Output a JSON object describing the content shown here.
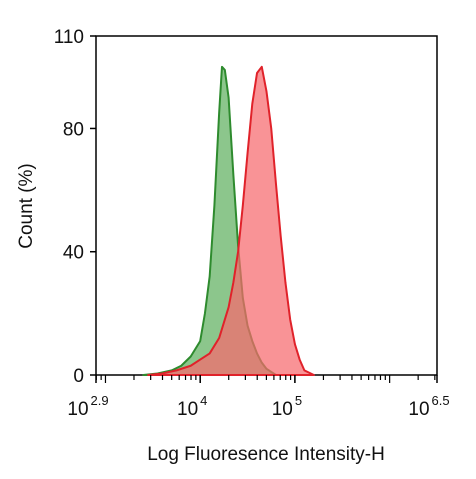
{
  "chart_data": {
    "type": "area",
    "title": "",
    "xlabel": "Log Fluoresence Intensity-H",
    "ylabel": "Count  (%)",
    "x_scale": "log10",
    "xlim": [
      2.9,
      6.5
    ],
    "ylim": [
      0,
      110
    ],
    "x_ticks": [
      {
        "base": "10",
        "exp": "2.9",
        "log": 2.9
      },
      {
        "base": "10",
        "exp": "4",
        "log": 4
      },
      {
        "base": "10",
        "exp": "5",
        "log": 5
      },
      {
        "base": "10",
        "exp": "6.5",
        "log": 6.5
      }
    ],
    "y_ticks": [
      0,
      40,
      80,
      110
    ],
    "grid": false,
    "legend": "none",
    "series": [
      {
        "color": "#2e8b2e",
        "fill": "#5fb05f",
        "points": [
          [
            3.4,
            0
          ],
          [
            3.55,
            0.5
          ],
          [
            3.7,
            1.5
          ],
          [
            3.8,
            3
          ],
          [
            3.9,
            6
          ],
          [
            4.0,
            11
          ],
          [
            4.05,
            20
          ],
          [
            4.1,
            32
          ],
          [
            4.15,
            55
          ],
          [
            4.2,
            85
          ],
          [
            4.23,
            100
          ],
          [
            4.26,
            99
          ],
          [
            4.3,
            90
          ],
          [
            4.35,
            65
          ],
          [
            4.4,
            42
          ],
          [
            4.45,
            25
          ],
          [
            4.5,
            16
          ],
          [
            4.55,
            11
          ],
          [
            4.6,
            7
          ],
          [
            4.65,
            4
          ],
          [
            4.7,
            2
          ],
          [
            4.8,
            0
          ]
        ]
      },
      {
        "color": "#e0222a",
        "fill": "#f66a6e",
        "points": [
          [
            3.45,
            0
          ],
          [
            3.6,
            0.5
          ],
          [
            3.75,
            1.5
          ],
          [
            3.9,
            3
          ],
          [
            4.0,
            5
          ],
          [
            4.1,
            7
          ],
          [
            4.2,
            12
          ],
          [
            4.3,
            22
          ],
          [
            4.35,
            30
          ],
          [
            4.4,
            40
          ],
          [
            4.45,
            55
          ],
          [
            4.5,
            72
          ],
          [
            4.55,
            88
          ],
          [
            4.6,
            98
          ],
          [
            4.65,
            100
          ],
          [
            4.7,
            92
          ],
          [
            4.75,
            80
          ],
          [
            4.8,
            62
          ],
          [
            4.85,
            45
          ],
          [
            4.9,
            30
          ],
          [
            4.95,
            18
          ],
          [
            5.0,
            10
          ],
          [
            5.05,
            5
          ],
          [
            5.1,
            1.5
          ],
          [
            5.2,
            0
          ]
        ]
      }
    ]
  }
}
